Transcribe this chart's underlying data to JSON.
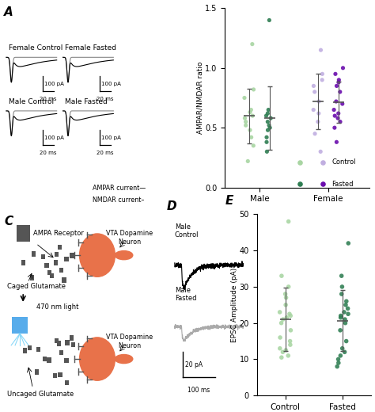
{
  "panel_B": {
    "male_control": [
      0.22,
      0.35,
      0.42,
      0.48,
      0.52,
      0.55,
      0.58,
      0.6,
      0.63,
      0.65,
      0.75,
      0.82,
      1.2
    ],
    "male_fasted": [
      0.3,
      0.38,
      0.42,
      0.48,
      0.5,
      0.52,
      0.55,
      0.58,
      0.6,
      0.62,
      0.65,
      1.4
    ],
    "female_control": [
      0.3,
      0.45,
      0.55,
      0.62,
      0.65,
      0.72,
      0.8,
      0.85,
      0.9,
      0.95,
      1.15
    ],
    "female_fasted": [
      0.38,
      0.5,
      0.55,
      0.58,
      0.6,
      0.62,
      0.65,
      0.7,
      0.72,
      0.8,
      0.85,
      0.88,
      0.9,
      0.95,
      1.0
    ],
    "color_male_control": "#a8d5a2",
    "color_male_fasted": "#2e7d52",
    "color_female_control": "#c0aee0",
    "color_female_fasted": "#6a0dad",
    "ylabel": "AMPAR/NMDAR ratio",
    "ylim": [
      0.0,
      1.5
    ],
    "yticks": [
      0.0,
      0.5,
      1.0,
      1.5
    ]
  },
  "panel_E": {
    "control": [
      10.5,
      11.0,
      12.0,
      12.5,
      13.0,
      14.0,
      15.0,
      16.0,
      18.0,
      20.0,
      21.0,
      21.5,
      22.0,
      22.5,
      23.0,
      25.0,
      27.0,
      28.0,
      30.0,
      33.0,
      48.0
    ],
    "fasted": [
      8.0,
      9.0,
      10.0,
      11.0,
      12.0,
      13.0,
      15.0,
      18.0,
      20.0,
      21.0,
      21.5,
      22.0,
      22.5,
      23.0,
      24.0,
      25.0,
      26.0,
      28.0,
      30.0,
      33.0,
      42.0
    ],
    "color_control": "#a8d5a2",
    "color_fasted": "#2e7d52",
    "ylabel": "EPSC Amplitude (pA)",
    "ylim": [
      0,
      50
    ],
    "yticks": [
      0,
      10,
      20,
      30,
      40,
      50
    ]
  },
  "bg_color": "#ffffff",
  "neuron_color": "#e8724a",
  "spine_color": "#444444",
  "glutamate_color": "#555555"
}
